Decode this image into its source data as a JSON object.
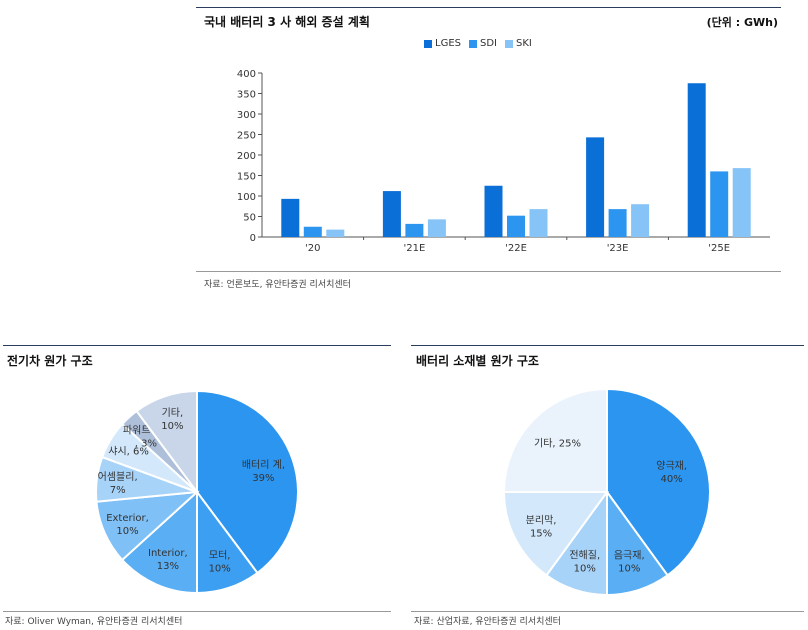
{
  "colors": {
    "rule": "#2a3d5c",
    "lges": "#0a6fd6",
    "sdi": "#2b95f0",
    "ski": "#86c3f7",
    "axis": "#555555"
  },
  "top_panel": {
    "title": "국내 배터리 3 사 해외 증설 계획",
    "unit": "(단위 : GWh)",
    "source": "자료: 언론보도, 유안타증권 리서치센터"
  },
  "left_panel": {
    "title": "전기차 원가 구조",
    "source": "자료: Oliver Wyman, 유안타증권 리서치센터"
  },
  "right_panel": {
    "title": "배터리 소재별 원가 구조",
    "source": "자료: 산업자료, 유안타증권 리서치센터"
  },
  "chart_data": [
    {
      "type": "bar",
      "title": "국내 배터리 3 사 해외 증설 계획",
      "unit": "(단위 : GWh)",
      "categories": [
        "'20",
        "'21E",
        "'22E",
        "'23E",
        "'25E"
      ],
      "series": [
        {
          "name": "LGES",
          "color": "#0a6fd6",
          "values": [
            93,
            112,
            125,
            243,
            375
          ]
        },
        {
          "name": "SDI",
          "color": "#2b95f0",
          "values": [
            25,
            32,
            52,
            68,
            160
          ]
        },
        {
          "name": "SKI",
          "color": "#86c3f7",
          "values": [
            18,
            43,
            68,
            80,
            168
          ]
        }
      ],
      "ylim": [
        0,
        400
      ],
      "yticks": [
        0,
        50,
        100,
        150,
        200,
        250,
        300,
        350,
        400
      ],
      "legend": "top-center",
      "grid": false
    },
    {
      "type": "pie",
      "title": "전기차 원가 구조",
      "slices": [
        {
          "label": "배터리 계,",
          "pct_label": "39%",
          "value": 39,
          "color": "#2b95f0"
        },
        {
          "label": "모터,",
          "pct_label": "10%",
          "value": 10,
          "color": "#3d9ff2"
        },
        {
          "label": "Interior,",
          "pct_label": "13%",
          "value": 13,
          "color": "#5aaef4"
        },
        {
          "label": "Exterior,",
          "pct_label": "10%",
          "value": 10,
          "color": "#7fc0f6"
        },
        {
          "label": "어셈블리,",
          "pct_label": "7%",
          "value": 7,
          "color": "#a8d3f8"
        },
        {
          "label": "샤시, 6%",
          "pct_label": "",
          "value": 6,
          "color": "#d3e8fb"
        },
        {
          "label": "파워트레인",
          "pct_label": ", 3%",
          "value": 3,
          "color": "#aebfda"
        },
        {
          "label": "기타,",
          "pct_label": "10%",
          "value": 10,
          "color": "#c9d6e9"
        }
      ]
    },
    {
      "type": "pie",
      "title": "배터리 소재별 원가 구조",
      "slices": [
        {
          "label": "양극재,",
          "pct_label": "40%",
          "value": 40,
          "color": "#2b95f0"
        },
        {
          "label": "음극재,",
          "pct_label": "10%",
          "value": 10,
          "color": "#5aaef4"
        },
        {
          "label": "전해질,",
          "pct_label": "10%",
          "value": 10,
          "color": "#a8d3f8"
        },
        {
          "label": "분리막,",
          "pct_label": "15%",
          "value": 15,
          "color": "#d3e8fb"
        },
        {
          "label": "기타, 25%",
          "pct_label": "",
          "value": 25,
          "color": "#eaf3fc"
        }
      ]
    }
  ]
}
